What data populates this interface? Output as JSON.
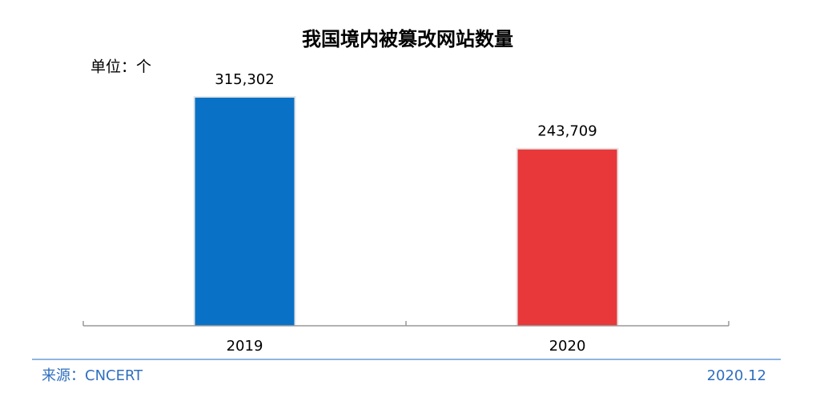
{
  "chart_data": {
    "type": "bar",
    "title": "我国境内被篡改网站数量",
    "unit": "单位：个",
    "categories": [
      "2019",
      "2020"
    ],
    "values": [
      315302,
      243709
    ],
    "value_labels": [
      "315,302",
      "243,709"
    ],
    "colors": [
      "#0a72c6",
      "#e8383a"
    ],
    "source": "来源：CNCERT",
    "date": "2020.12"
  }
}
